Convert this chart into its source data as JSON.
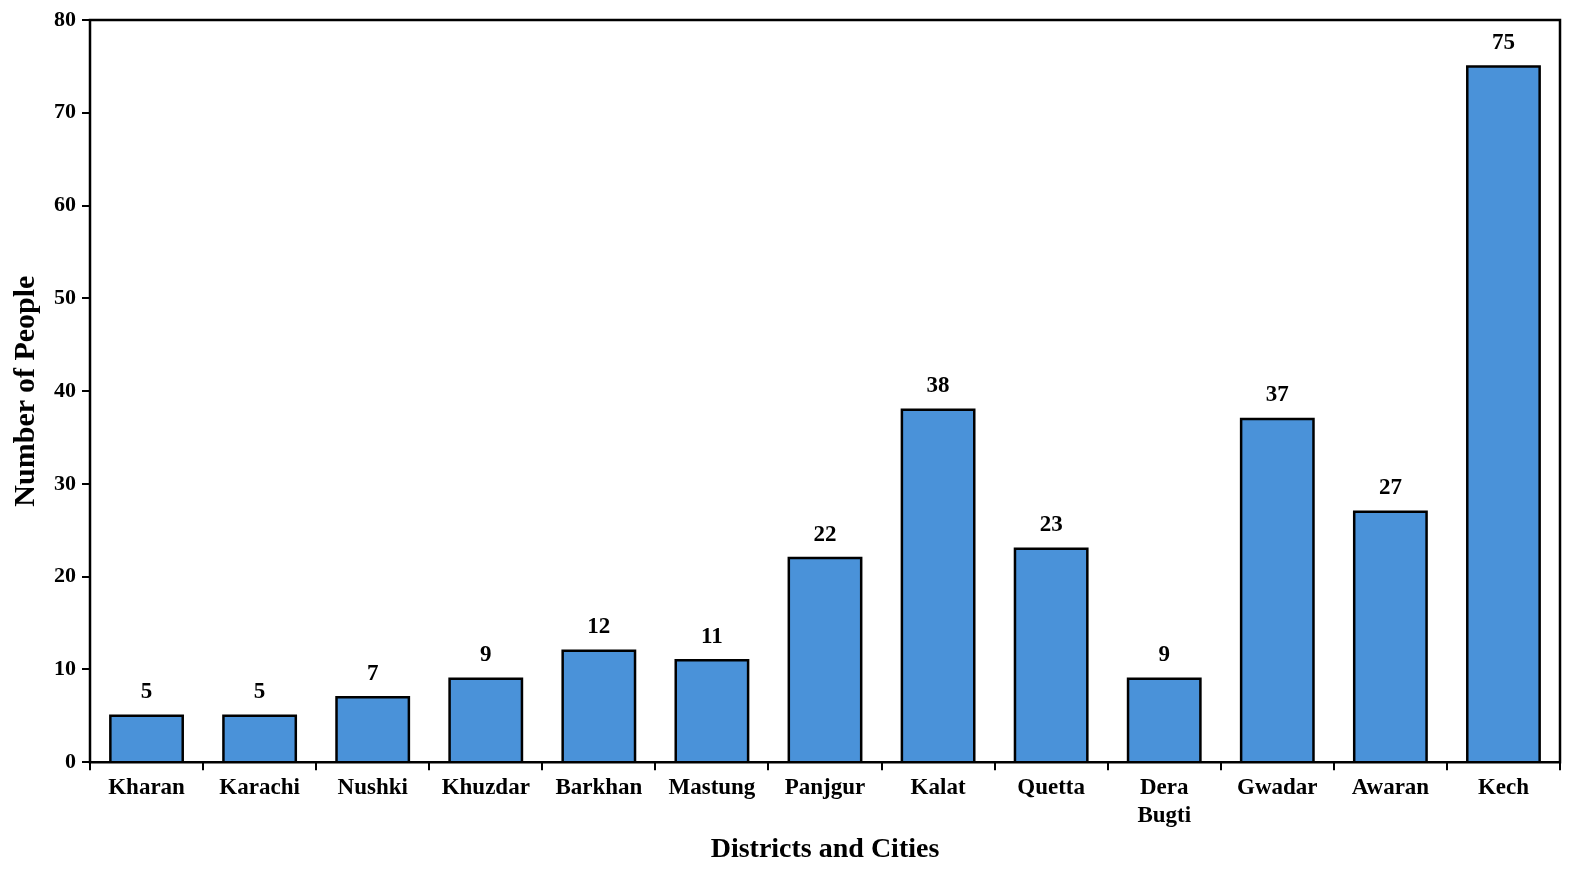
{
  "chart_data": {
    "type": "bar",
    "xlabel": "Districts and Cities",
    "ylabel": "Number of People",
    "categories": [
      "Kharan",
      "Karachi",
      "Nushki",
      "Khuzdar",
      "Barkhan",
      "Mastung",
      "Panjgur",
      "Kalat",
      "Quetta",
      "Dera Bugti",
      "Gwadar",
      "Awaran",
      "Kech"
    ],
    "values": [
      5,
      5,
      7,
      9,
      12,
      11,
      22,
      38,
      23,
      9,
      37,
      27,
      75
    ],
    "color": "#4a92d9",
    "ylim": [
      0,
      80
    ],
    "yticks": [
      0,
      10,
      20,
      30,
      40,
      50,
      60,
      70,
      80
    ],
    "grid": false,
    "legend": false,
    "data_labels": true
  }
}
